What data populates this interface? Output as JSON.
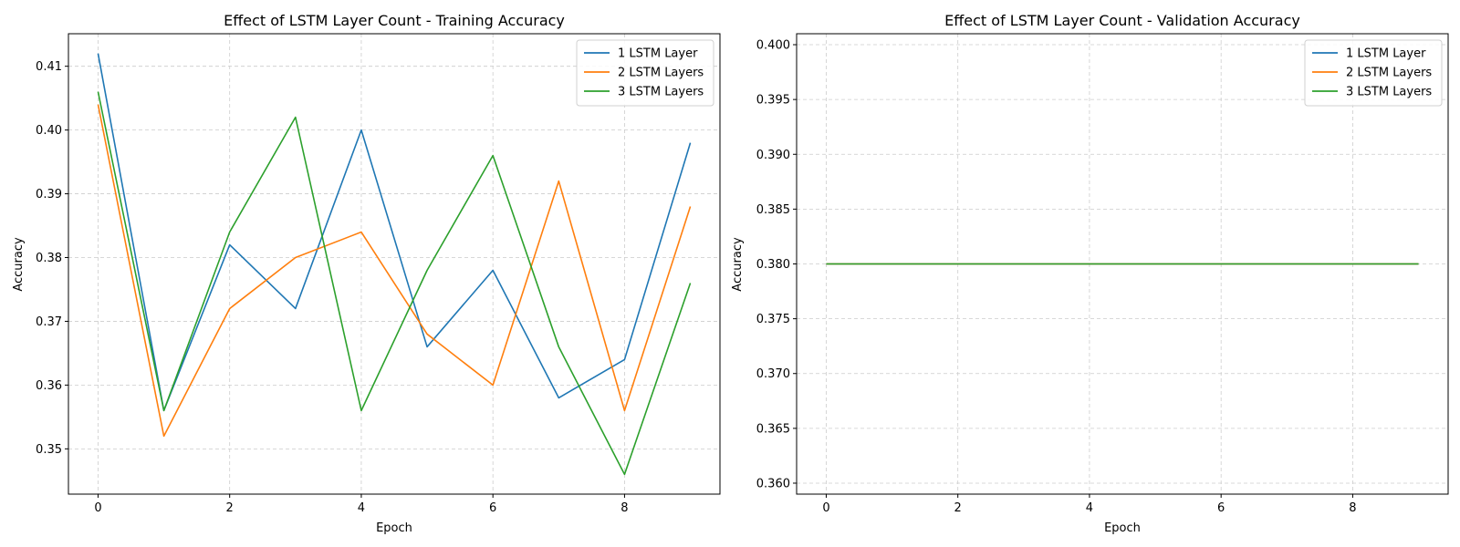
{
  "chart_data": [
    {
      "type": "line",
      "title": "Effect of LSTM Layer Count - Training Accuracy",
      "xlabel": "Epoch",
      "ylabel": "Accuracy",
      "x": [
        0,
        1,
        2,
        3,
        4,
        5,
        6,
        7,
        8,
        9
      ],
      "xlim": [
        -0.45,
        9.45
      ],
      "ylim": [
        0.3429,
        0.4151
      ],
      "xticks": [
        0,
        2,
        4,
        6,
        8
      ],
      "yticks": [
        0.35,
        0.36,
        0.37,
        0.38,
        0.39,
        0.4,
        0.41
      ],
      "ytick_labels": [
        "0.35",
        "0.36",
        "0.37",
        "0.38",
        "0.39",
        "0.40",
        "0.41"
      ],
      "grid": true,
      "legend_position": "top-right",
      "series": [
        {
          "name": "1 LSTM Layer",
          "color": "#1f77b4",
          "values": [
            0.412,
            0.356,
            0.382,
            0.372,
            0.4,
            0.366,
            0.378,
            0.358,
            0.364,
            0.398
          ]
        },
        {
          "name": "2 LSTM Layers",
          "color": "#ff7f0e",
          "values": [
            0.404,
            0.352,
            0.372,
            0.38,
            0.384,
            0.368,
            0.36,
            0.392,
            0.356,
            0.388
          ]
        },
        {
          "name": "3 LSTM Layers",
          "color": "#2ca02c",
          "values": [
            0.406,
            0.356,
            0.384,
            0.402,
            0.356,
            0.378,
            0.396,
            0.366,
            0.346,
            0.376
          ]
        }
      ]
    },
    {
      "type": "line",
      "title": "Effect of LSTM Layer Count - Validation Accuracy",
      "xlabel": "Epoch",
      "ylabel": "Accuracy",
      "x": [
        0,
        1,
        2,
        3,
        4,
        5,
        6,
        7,
        8,
        9
      ],
      "xlim": [
        -0.45,
        9.45
      ],
      "ylim": [
        0.359,
        0.401
      ],
      "xticks": [
        0,
        2,
        4,
        6,
        8
      ],
      "yticks": [
        0.36,
        0.365,
        0.37,
        0.375,
        0.38,
        0.385,
        0.39,
        0.395,
        0.4
      ],
      "ytick_labels": [
        "0.360",
        "0.365",
        "0.370",
        "0.375",
        "0.380",
        "0.385",
        "0.390",
        "0.395",
        "0.400"
      ],
      "grid": true,
      "legend_position": "top-right",
      "series": [
        {
          "name": "1 LSTM Layer",
          "color": "#1f77b4",
          "values": [
            0.38,
            0.38,
            0.38,
            0.38,
            0.38,
            0.38,
            0.38,
            0.38,
            0.38,
            0.38
          ]
        },
        {
          "name": "2 LSTM Layers",
          "color": "#ff7f0e",
          "values": [
            0.38,
            0.38,
            0.38,
            0.38,
            0.38,
            0.38,
            0.38,
            0.38,
            0.38,
            0.38
          ]
        },
        {
          "name": "3 LSTM Layers",
          "color": "#2ca02c",
          "values": [
            0.38,
            0.38,
            0.38,
            0.38,
            0.38,
            0.38,
            0.38,
            0.38,
            0.38,
            0.38
          ]
        }
      ]
    }
  ]
}
